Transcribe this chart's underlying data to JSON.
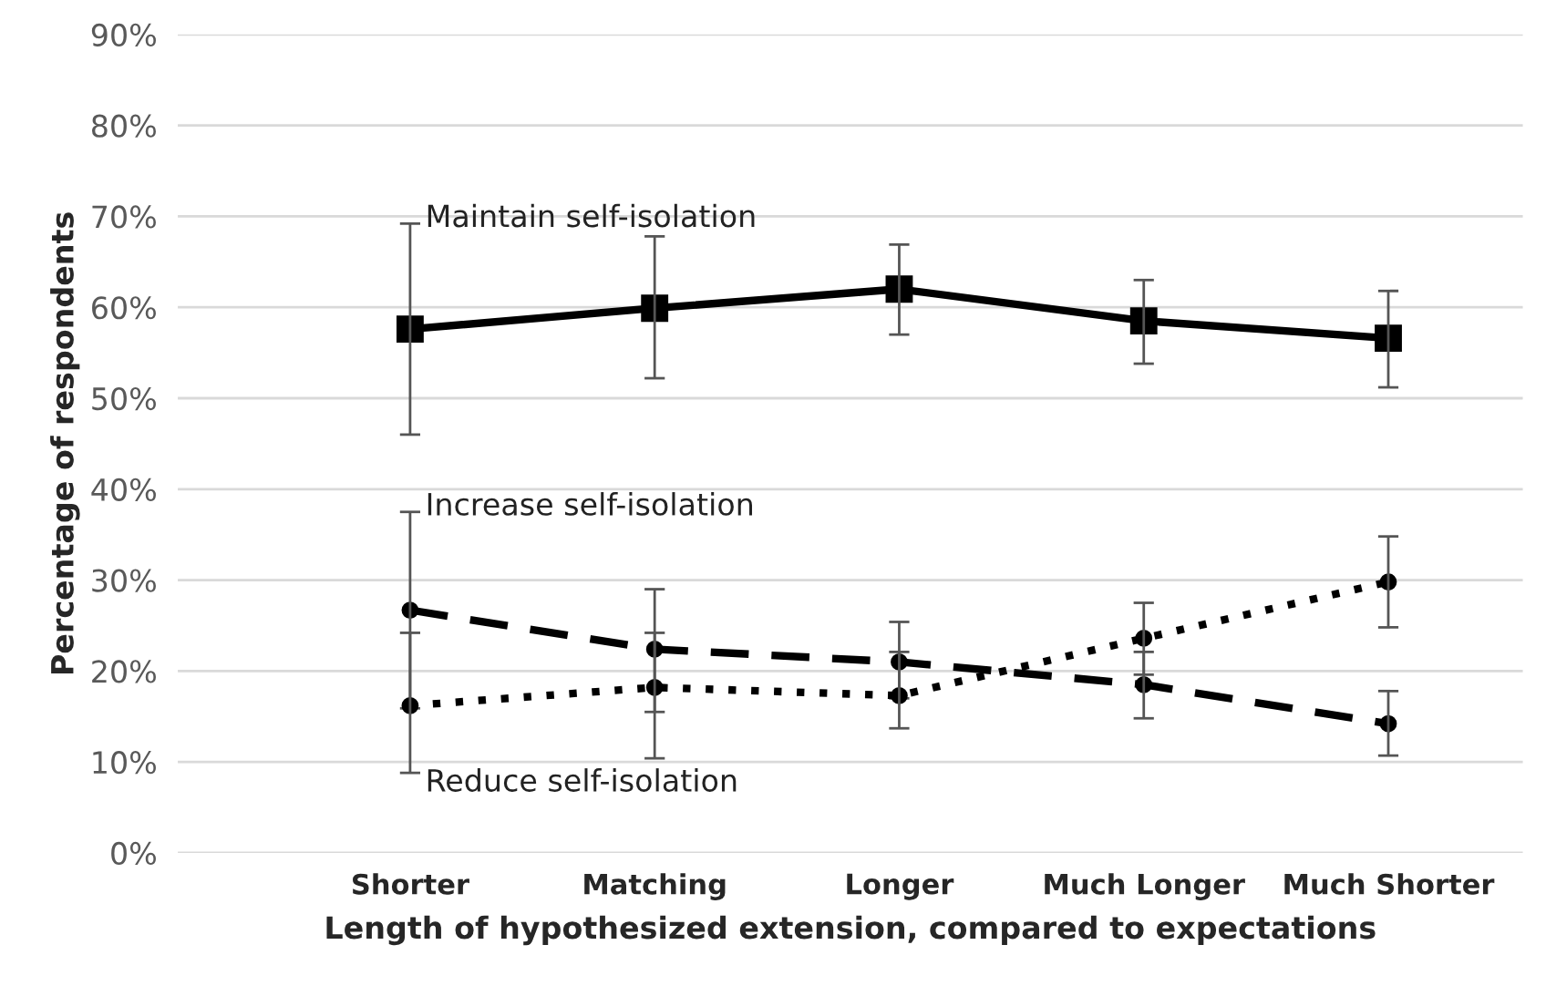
{
  "chart_data": {
    "type": "line",
    "xlabel": "Length of hypothesized extension, compared to expectations",
    "ylabel": "Percentage of respondents",
    "categories": [
      "Shorter",
      "Matching",
      "Longer",
      "Much Longer",
      "Much Shorter"
    ],
    "ylim": [
      0,
      90
    ],
    "yticks": [
      {
        "value": 0,
        "label": "0%"
      },
      {
        "value": 10,
        "label": "10%"
      },
      {
        "value": 20,
        "label": "20%"
      },
      {
        "value": 30,
        "label": "30%"
      },
      {
        "value": 40,
        "label": "40%"
      },
      {
        "value": 50,
        "label": "50%"
      },
      {
        "value": 60,
        "label": "60%"
      },
      {
        "value": 70,
        "label": "70%"
      },
      {
        "value": 80,
        "label": "80%"
      },
      {
        "value": 90,
        "label": "90%"
      }
    ],
    "grid": "y",
    "legend": false,
    "series": [
      {
        "name": "Maintain self-isolation",
        "color": "#000000",
        "line_style": "solid",
        "marker": "square",
        "values": [
          57.6,
          59.9,
          62.0,
          58.5,
          56.6
        ],
        "errors": [
          [
            46.0,
            69.2
          ],
          [
            52.2,
            67.8
          ],
          [
            57.0,
            66.9
          ],
          [
            53.8,
            63.0
          ],
          [
            51.2,
            61.8
          ]
        ]
      },
      {
        "name": "Increase self-isolation",
        "color": "#000000",
        "line_style": "dashed",
        "marker": "circle",
        "values": [
          26.7,
          22.4,
          21.0,
          18.5,
          14.2
        ],
        "errors": [
          [
            15.9,
            37.5
          ],
          [
            15.5,
            29.0
          ],
          [
            17.0,
            25.4
          ],
          [
            14.8,
            22.1
          ],
          [
            10.7,
            17.8
          ]
        ]
      },
      {
        "name": "Reduce self-isolation",
        "color": "#000000",
        "line_style": "dotted",
        "marker": "circle",
        "values": [
          16.2,
          18.2,
          17.3,
          23.6,
          29.8
        ],
        "errors": [
          [
            8.8,
            24.2
          ],
          [
            10.4,
            24.2
          ],
          [
            13.7,
            22.1
          ],
          [
            19.6,
            27.5
          ],
          [
            24.8,
            34.8
          ]
        ]
      }
    ]
  }
}
